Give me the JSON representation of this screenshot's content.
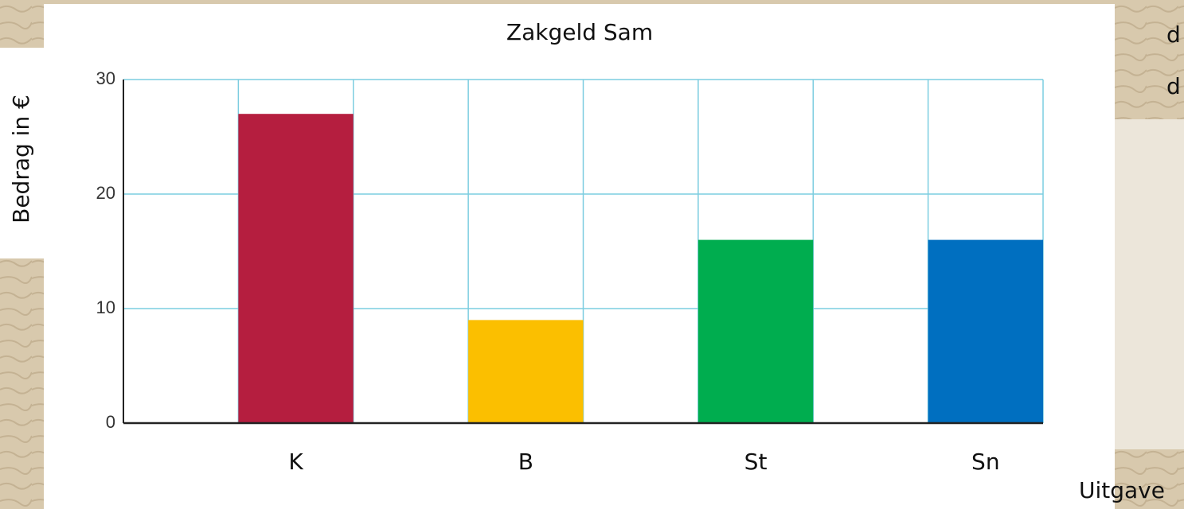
{
  "chart_data": {
    "type": "bar",
    "title": "Zakgeld Sam",
    "y_label": "Bedrag in €",
    "x_label": "Uitgave",
    "categories": [
      null,
      "K",
      null,
      "B",
      null,
      "St",
      null,
      "Sn"
    ],
    "values": [
      null,
      27,
      null,
      9,
      null,
      16,
      null,
      16
    ],
    "colors": [
      null,
      "#b51e3f",
      null,
      "#fbbf00",
      null,
      "#00ad4f",
      null,
      "#006fc0"
    ],
    "ylim": [
      0,
      30
    ],
    "yticks": [
      0,
      10,
      20,
      30
    ],
    "grid": true
  },
  "side_text": [
    "d",
    "d"
  ]
}
